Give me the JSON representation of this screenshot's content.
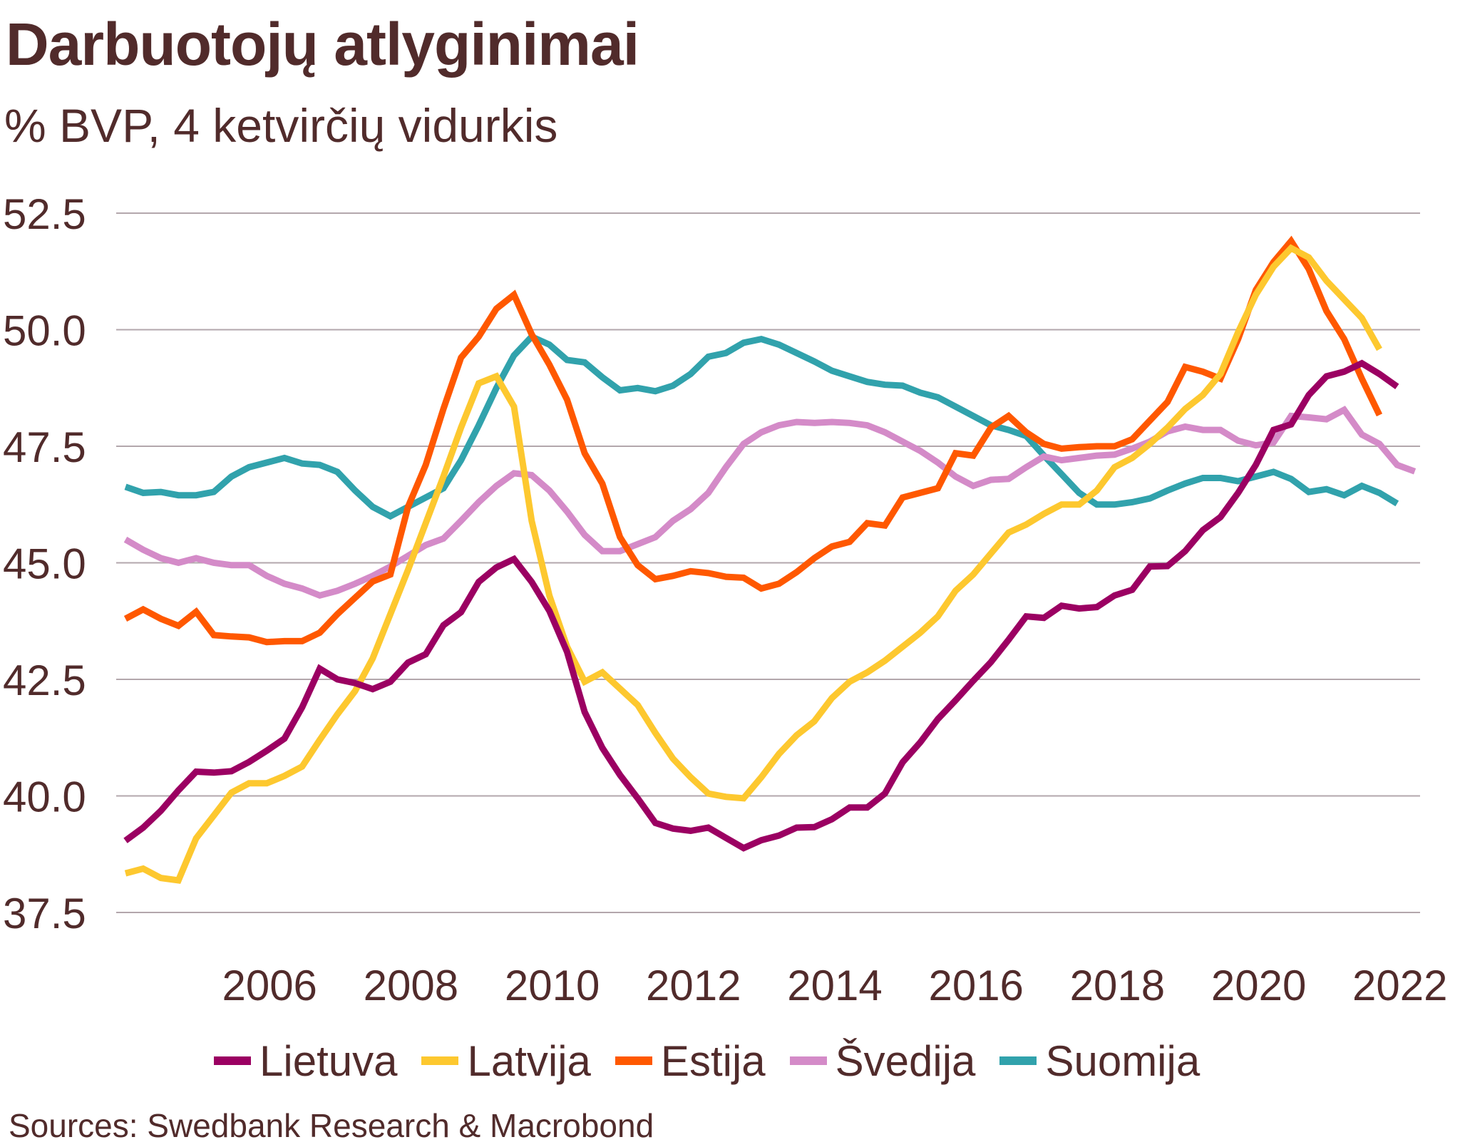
{
  "header": {
    "title": "Darbuotojų atlyginimai",
    "subtitle": "% BVP, 4 ketvirčių vidurkis"
  },
  "footer": {
    "source": "Sources: Swedbank Research & Macrobond"
  },
  "chart_data": {
    "type": "line",
    "title": "Darbuotojų atlyginimai",
    "subtitle": "% BVP, 4 ketvirčių vidurkis",
    "xlabel": "",
    "ylabel": "",
    "x_start": "2004 Q1",
    "x_frequency": "quarterly",
    "x_range": [
      2004.0,
      2022.0
    ],
    "ylim": [
      37.5,
      52.5
    ],
    "yticks": [
      "52.5",
      "50.0",
      "47.5",
      "45.0",
      "42.5",
      "40.0",
      "37.5"
    ],
    "ytick_values": [
      52.5,
      50.0,
      47.5,
      45.0,
      42.5,
      40.0,
      37.5
    ],
    "xticks": [
      "2006",
      "2008",
      "2010",
      "2012",
      "2014",
      "2016",
      "2018",
      "2020",
      "2022"
    ],
    "xtick_values": [
      2006,
      2008,
      2010,
      2012,
      2014,
      2016,
      2018,
      2020,
      2022
    ],
    "grid": "horizontal",
    "legend_position": "bottom",
    "series": [
      {
        "name": "Lietuva",
        "color": "#9B0062",
        "values": [
          39.04,
          39.32,
          39.68,
          40.12,
          40.52,
          40.5,
          40.53,
          40.73,
          40.97,
          41.23,
          41.9,
          42.73,
          42.5,
          42.42,
          42.29,
          42.45,
          42.86,
          43.04,
          43.66,
          43.94,
          44.59,
          44.9,
          45.08,
          44.59,
          43.97,
          43.09,
          41.8,
          41.03,
          40.45,
          39.95,
          39.42,
          39.3,
          39.25,
          39.32,
          39.1,
          38.88,
          39.05,
          39.15,
          39.32,
          39.33,
          39.5,
          39.75,
          39.75,
          40.05,
          40.72,
          41.15,
          41.65,
          42.05,
          42.47,
          42.87,
          43.35,
          43.85,
          43.82,
          44.08,
          44.02,
          44.05,
          44.3,
          44.42,
          44.92,
          44.93,
          45.25,
          45.7,
          45.98,
          46.5,
          47.1,
          47.85,
          47.97,
          48.6,
          49.0,
          49.1,
          49.28,
          49.05,
          48.78
        ]
      },
      {
        "name": "Latvija",
        "color": "#FDC82F",
        "values": [
          38.34,
          38.44,
          38.24,
          38.19,
          39.09,
          39.58,
          40.07,
          40.27,
          40.27,
          40.43,
          40.63,
          41.2,
          41.75,
          42.25,
          42.95,
          43.9,
          44.85,
          45.85,
          46.85,
          47.9,
          48.85,
          49.0,
          48.35,
          45.9,
          44.3,
          43.2,
          42.45,
          42.65,
          42.3,
          41.95,
          41.35,
          40.8,
          40.4,
          40.05,
          39.98,
          39.95,
          40.4,
          40.9,
          41.3,
          41.6,
          42.1,
          42.45,
          42.65,
          42.9,
          43.2,
          43.5,
          43.85,
          44.4,
          44.75,
          45.2,
          45.65,
          45.82,
          46.05,
          46.25,
          46.25,
          46.55,
          47.05,
          47.25,
          47.55,
          47.9,
          48.3,
          48.6,
          49.05,
          49.95,
          50.75,
          51.35,
          51.75,
          51.55,
          51.05,
          50.65,
          50.25,
          49.58
        ]
      },
      {
        "name": "Estija",
        "color": "#FF5800",
        "values": [
          43.8,
          44.0,
          43.8,
          43.65,
          43.95,
          43.45,
          43.42,
          43.4,
          43.3,
          43.32,
          43.32,
          43.5,
          43.9,
          44.25,
          44.6,
          44.75,
          46.2,
          47.1,
          48.3,
          49.4,
          49.85,
          50.45,
          50.75,
          49.9,
          49.25,
          48.5,
          47.35,
          46.7,
          45.55,
          44.95,
          44.65,
          44.72,
          44.82,
          44.78,
          44.7,
          44.68,
          44.45,
          44.55,
          44.8,
          45.1,
          45.35,
          45.45,
          45.85,
          45.8,
          46.4,
          46.5,
          46.6,
          47.35,
          47.3,
          47.9,
          48.15,
          47.8,
          47.55,
          47.45,
          47.48,
          47.5,
          47.5,
          47.65,
          48.05,
          48.45,
          49.2,
          49.1,
          48.95,
          49.8,
          50.85,
          51.45,
          51.9,
          51.3,
          50.4,
          49.8,
          48.95,
          48.17
        ]
      },
      {
        "name": "Švedija",
        "color": "#D48BC8",
        "values": [
          45.5,
          45.28,
          45.1,
          45.0,
          45.1,
          45.0,
          44.95,
          44.95,
          44.72,
          44.55,
          44.45,
          44.3,
          44.4,
          44.55,
          44.72,
          44.92,
          45.15,
          45.38,
          45.52,
          45.9,
          46.3,
          46.65,
          46.92,
          46.88,
          46.55,
          46.1,
          45.6,
          45.25,
          45.25,
          45.4,
          45.55,
          45.9,
          46.15,
          46.5,
          47.05,
          47.55,
          47.8,
          47.95,
          48.02,
          48.0,
          48.02,
          48.0,
          47.95,
          47.8,
          47.6,
          47.4,
          47.15,
          46.85,
          46.65,
          46.78,
          46.8,
          47.05,
          47.28,
          47.2,
          47.25,
          47.3,
          47.32,
          47.45,
          47.6,
          47.82,
          47.92,
          47.85,
          47.85,
          47.62,
          47.52,
          47.58,
          48.15,
          48.12,
          48.08,
          48.28,
          47.75,
          47.55,
          47.1,
          46.96
        ]
      },
      {
        "name": "Suomija",
        "color": "#31A2AC",
        "values": [
          46.63,
          46.5,
          46.52,
          46.45,
          46.45,
          46.52,
          46.85,
          47.05,
          47.15,
          47.25,
          47.13,
          47.1,
          46.95,
          46.55,
          46.2,
          46.0,
          46.2,
          46.4,
          46.6,
          47.2,
          47.95,
          48.75,
          49.45,
          49.85,
          49.68,
          49.35,
          49.3,
          48.98,
          48.7,
          48.75,
          48.68,
          48.8,
          49.05,
          49.42,
          49.5,
          49.72,
          49.8,
          49.68,
          49.5,
          49.32,
          49.12,
          49.0,
          48.88,
          48.82,
          48.8,
          48.65,
          48.55,
          48.35,
          48.15,
          47.95,
          47.85,
          47.72,
          47.3,
          46.9,
          46.5,
          46.25,
          46.25,
          46.3,
          46.38,
          46.55,
          46.7,
          46.82,
          46.82,
          46.75,
          46.85,
          46.95,
          46.8,
          46.52,
          46.58,
          46.45,
          46.65,
          46.5,
          46.27
        ]
      }
    ]
  }
}
